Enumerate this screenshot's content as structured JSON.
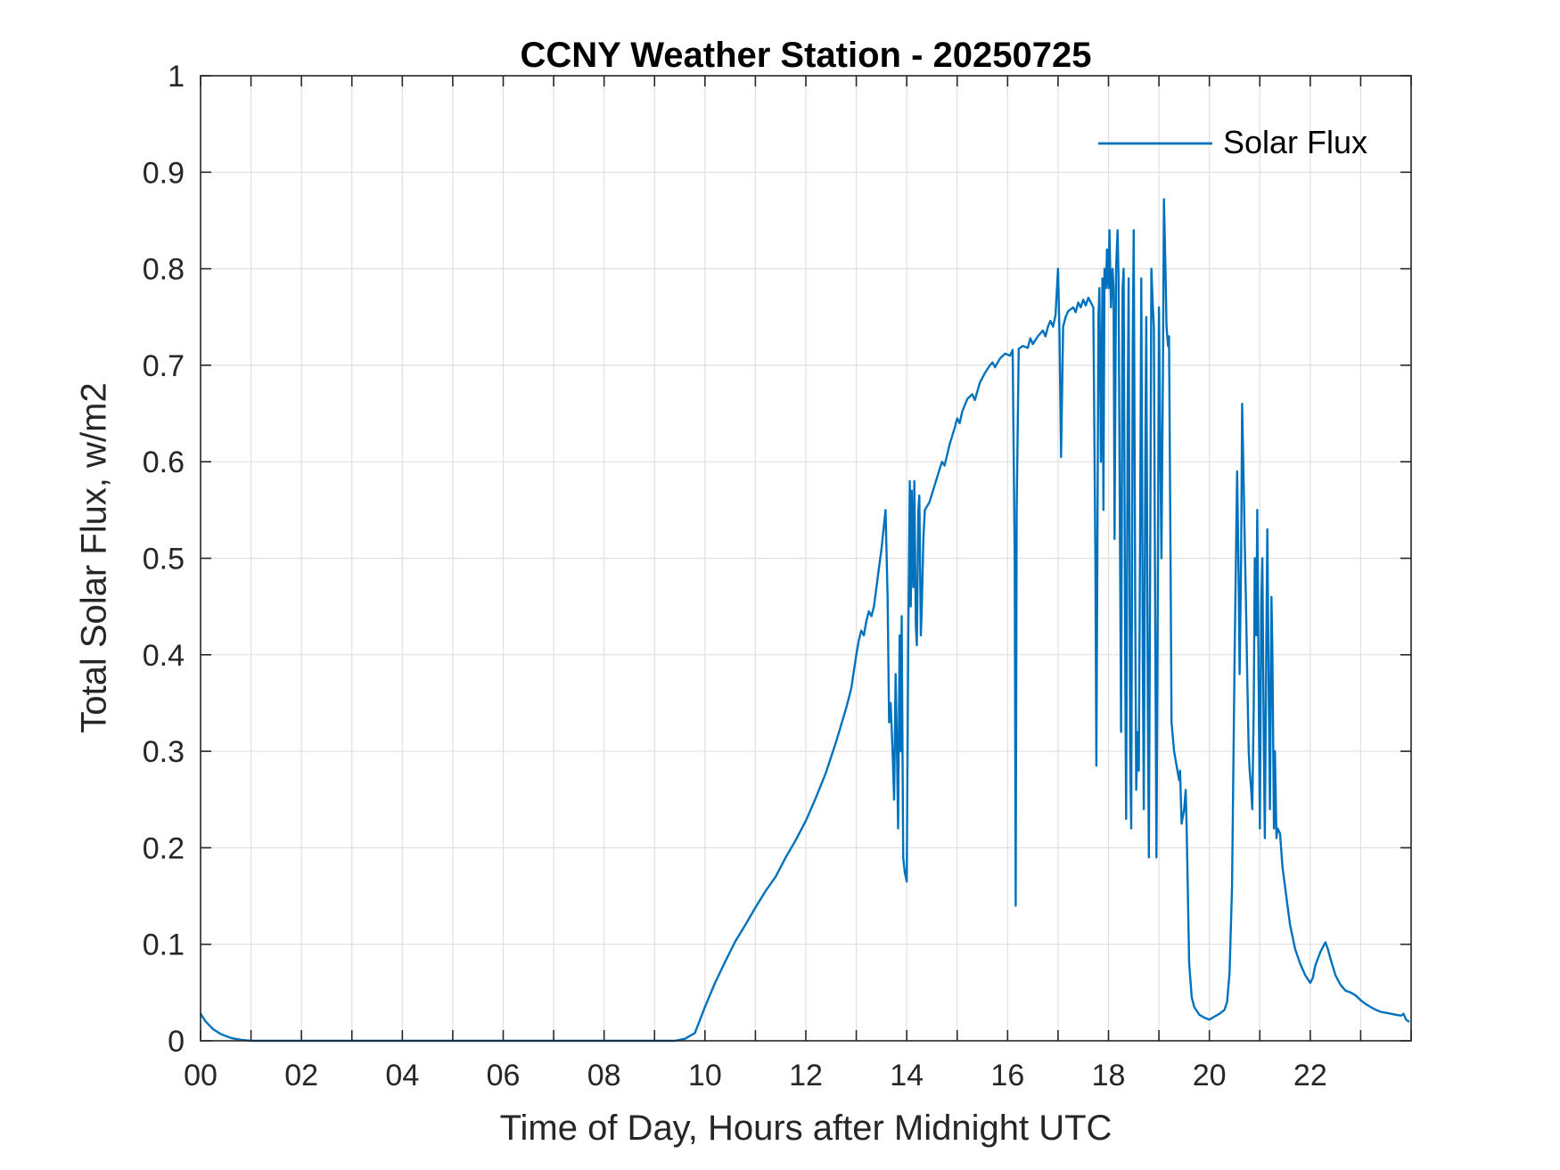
{
  "colors": {
    "background": "#ffffff",
    "line": "#0072BD",
    "grid": "#e0e0e0",
    "axis": "#262626",
    "tick_text": "#262626",
    "title_text": "#000000"
  },
  "chart_data": {
    "type": "line",
    "title": "CCNY Weather Station - 20250725",
    "xlabel": "Time of Day, Hours after Midnight UTC",
    "ylabel": "Total Solar Flux, w/m2",
    "xlim": [
      0,
      24
    ],
    "ylim": [
      0,
      1
    ],
    "grid": true,
    "x_tick_step": 1,
    "x_tick_labels": [
      {
        "value": 0,
        "label": "00"
      },
      {
        "value": 2,
        "label": "02"
      },
      {
        "value": 4,
        "label": "04"
      },
      {
        "value": 6,
        "label": "06"
      },
      {
        "value": 8,
        "label": "08"
      },
      {
        "value": 10,
        "label": "10"
      },
      {
        "value": 12,
        "label": "12"
      },
      {
        "value": 14,
        "label": "14"
      },
      {
        "value": 16,
        "label": "16"
      },
      {
        "value": 18,
        "label": "18"
      },
      {
        "value": 20,
        "label": "20"
      },
      {
        "value": 22,
        "label": "22"
      }
    ],
    "y_ticks": [
      {
        "value": 0,
        "label": "0"
      },
      {
        "value": 0.1,
        "label": "0.1"
      },
      {
        "value": 0.2,
        "label": "0.2"
      },
      {
        "value": 0.3,
        "label": "0.3"
      },
      {
        "value": 0.4,
        "label": "0.4"
      },
      {
        "value": 0.5,
        "label": "0.5"
      },
      {
        "value": 0.6,
        "label": "0.6"
      },
      {
        "value": 0.7,
        "label": "0.7"
      },
      {
        "value": 0.8,
        "label": "0.8"
      },
      {
        "value": 0.9,
        "label": "0.9"
      },
      {
        "value": 1,
        "label": "1"
      }
    ],
    "legend": {
      "position": "northeast",
      "entries": [
        {
          "label": "Solar Flux",
          "color": "#0072BD"
        }
      ]
    },
    "series": [
      {
        "name": "Solar Flux",
        "color": "#0072BD",
        "points": [
          [
            0,
            0.028
          ],
          [
            0.1,
            0.02
          ],
          [
            0.25,
            0.012
          ],
          [
            0.4,
            0.007
          ],
          [
            0.6,
            0.003
          ],
          [
            0.8,
            0.001
          ],
          [
            1,
            0
          ],
          [
            1.5,
            0
          ],
          [
            2,
            0
          ],
          [
            2.5,
            0
          ],
          [
            3,
            0
          ],
          [
            3.5,
            0
          ],
          [
            4,
            0
          ],
          [
            4.5,
            0
          ],
          [
            5,
            0
          ],
          [
            5.5,
            0
          ],
          [
            6,
            0
          ],
          [
            6.5,
            0
          ],
          [
            7,
            0
          ],
          [
            7.5,
            0
          ],
          [
            8,
            0
          ],
          [
            8.5,
            0
          ],
          [
            9,
            0
          ],
          [
            9.4,
            0
          ],
          [
            9.6,
            0.002
          ],
          [
            9.8,
            0.008
          ],
          [
            10,
            0.035
          ],
          [
            10.2,
            0.06
          ],
          [
            10.4,
            0.082
          ],
          [
            10.6,
            0.103
          ],
          [
            10.8,
            0.12
          ],
          [
            11,
            0.138
          ],
          [
            11.2,
            0.155
          ],
          [
            11.4,
            0.17
          ],
          [
            11.6,
            0.19
          ],
          [
            11.8,
            0.208
          ],
          [
            12,
            0.228
          ],
          [
            12.2,
            0.252
          ],
          [
            12.4,
            0.278
          ],
          [
            12.6,
            0.31
          ],
          [
            12.8,
            0.345
          ],
          [
            12.9,
            0.365
          ],
          [
            13,
            0.4
          ],
          [
            13.05,
            0.415
          ],
          [
            13.1,
            0.425
          ],
          [
            13.15,
            0.42
          ],
          [
            13.2,
            0.435
          ],
          [
            13.25,
            0.445
          ],
          [
            13.3,
            0.44
          ],
          [
            13.35,
            0.45
          ],
          [
            13.4,
            0.47
          ],
          [
            13.45,
            0.49
          ],
          [
            13.5,
            0.51
          ],
          [
            13.55,
            0.535
          ],
          [
            13.58,
            0.55
          ],
          [
            13.62,
            0.46
          ],
          [
            13.65,
            0.33
          ],
          [
            13.68,
            0.35
          ],
          [
            13.72,
            0.3
          ],
          [
            13.75,
            0.25
          ],
          [
            13.78,
            0.38
          ],
          [
            13.8,
            0.32
          ],
          [
            13.83,
            0.22
          ],
          [
            13.86,
            0.42
          ],
          [
            13.88,
            0.3
          ],
          [
            13.9,
            0.44
          ],
          [
            13.93,
            0.19
          ],
          [
            13.96,
            0.175
          ],
          [
            14,
            0.165
          ],
          [
            14.03,
            0.42
          ],
          [
            14.06,
            0.58
          ],
          [
            14.08,
            0.45
          ],
          [
            14.1,
            0.57
          ],
          [
            14.13,
            0.47
          ],
          [
            14.15,
            0.58
          ],
          [
            14.18,
            0.43
          ],
          [
            14.2,
            0.41
          ],
          [
            14.23,
            0.55
          ],
          [
            14.25,
            0.565
          ],
          [
            14.28,
            0.42
          ],
          [
            14.3,
            0.45
          ],
          [
            14.33,
            0.52
          ],
          [
            14.36,
            0.55
          ],
          [
            14.45,
            0.558
          ],
          [
            14.55,
            0.575
          ],
          [
            14.65,
            0.592
          ],
          [
            14.7,
            0.6
          ],
          [
            14.75,
            0.596
          ],
          [
            14.85,
            0.618
          ],
          [
            14.95,
            0.635
          ],
          [
            15,
            0.645
          ],
          [
            15.05,
            0.64
          ],
          [
            15.1,
            0.652
          ],
          [
            15.2,
            0.665
          ],
          [
            15.3,
            0.67
          ],
          [
            15.35,
            0.664
          ],
          [
            15.45,
            0.682
          ],
          [
            15.55,
            0.692
          ],
          [
            15.65,
            0.7
          ],
          [
            15.7,
            0.703
          ],
          [
            15.75,
            0.698
          ],
          [
            15.85,
            0.707
          ],
          [
            15.95,
            0.712
          ],
          [
            16.05,
            0.71
          ],
          [
            16.1,
            0.716
          ],
          [
            16.14,
            0.5
          ],
          [
            16.16,
            0.14
          ],
          [
            16.18,
            0.55
          ],
          [
            16.22,
            0.717
          ],
          [
            16.3,
            0.72
          ],
          [
            16.4,
            0.718
          ],
          [
            16.45,
            0.728
          ],
          [
            16.5,
            0.722
          ],
          [
            16.6,
            0.73
          ],
          [
            16.7,
            0.736
          ],
          [
            16.75,
            0.73
          ],
          [
            16.8,
            0.74
          ],
          [
            16.85,
            0.746
          ],
          [
            16.9,
            0.74
          ],
          [
            16.95,
            0.752
          ],
          [
            17,
            0.8
          ],
          [
            17.03,
            0.73
          ],
          [
            17.06,
            0.605
          ],
          [
            17.1,
            0.74
          ],
          [
            17.15,
            0.75
          ],
          [
            17.2,
            0.756
          ],
          [
            17.3,
            0.76
          ],
          [
            17.35,
            0.755
          ],
          [
            17.4,
            0.765
          ],
          [
            17.45,
            0.76
          ],
          [
            17.5,
            0.768
          ],
          [
            17.55,
            0.762
          ],
          [
            17.6,
            0.77
          ],
          [
            17.65,
            0.765
          ],
          [
            17.7,
            0.76
          ],
          [
            17.74,
            0.5
          ],
          [
            17.76,
            0.285
          ],
          [
            17.78,
            0.52
          ],
          [
            17.8,
            0.75
          ],
          [
            17.82,
            0.78
          ],
          [
            17.85,
            0.6
          ],
          [
            17.88,
            0.79
          ],
          [
            17.9,
            0.55
          ],
          [
            17.92,
            0.8
          ],
          [
            17.95,
            0.78
          ],
          [
            17.97,
            0.82
          ],
          [
            18,
            0.78
          ],
          [
            18.02,
            0.84
          ],
          [
            18.05,
            0.76
          ],
          [
            18.08,
            0.8
          ],
          [
            18.1,
            0.78
          ],
          [
            18.12,
            0.52
          ],
          [
            18.15,
            0.8
          ],
          [
            18.18,
            0.84
          ],
          [
            18.2,
            0.79
          ],
          [
            18.22,
            0.6
          ],
          [
            18.25,
            0.32
          ],
          [
            18.28,
            0.78
          ],
          [
            18.3,
            0.8
          ],
          [
            18.33,
            0.4
          ],
          [
            18.35,
            0.23
          ],
          [
            18.38,
            0.65
          ],
          [
            18.4,
            0.79
          ],
          [
            18.43,
            0.3
          ],
          [
            18.45,
            0.22
          ],
          [
            18.48,
            0.72
          ],
          [
            18.5,
            0.84
          ],
          [
            18.53,
            0.45
          ],
          [
            18.55,
            0.26
          ],
          [
            18.58,
            0.32
          ],
          [
            18.6,
            0.28
          ],
          [
            18.63,
            0.55
          ],
          [
            18.65,
            0.79
          ],
          [
            18.68,
            0.4
          ],
          [
            18.7,
            0.24
          ],
          [
            18.73,
            0.6
          ],
          [
            18.75,
            0.75
          ],
          [
            18.78,
            0.35
          ],
          [
            18.8,
            0.19
          ],
          [
            18.83,
            0.55
          ],
          [
            18.85,
            0.8
          ],
          [
            18.88,
            0.76
          ],
          [
            18.9,
            0.74
          ],
          [
            18.93,
            0.4
          ],
          [
            18.95,
            0.19
          ],
          [
            18.98,
            0.5
          ],
          [
            19,
            0.76
          ],
          [
            19.03,
            0.6
          ],
          [
            19.05,
            0.5
          ],
          [
            19.08,
            0.7
          ],
          [
            19.1,
            0.872
          ],
          [
            19.13,
            0.8
          ],
          [
            19.15,
            0.74
          ],
          [
            19.18,
            0.72
          ],
          [
            19.2,
            0.73
          ],
          [
            19.23,
            0.5
          ],
          [
            19.25,
            0.33
          ],
          [
            19.3,
            0.3
          ],
          [
            19.35,
            0.285
          ],
          [
            19.4,
            0.27
          ],
          [
            19.42,
            0.28
          ],
          [
            19.45,
            0.225
          ],
          [
            19.5,
            0.24
          ],
          [
            19.53,
            0.26
          ],
          [
            19.55,
            0.22
          ],
          [
            19.6,
            0.08
          ],
          [
            19.65,
            0.045
          ],
          [
            19.7,
            0.035
          ],
          [
            19.8,
            0.027
          ],
          [
            19.9,
            0.024
          ],
          [
            20,
            0.022
          ],
          [
            20.1,
            0.025
          ],
          [
            20.2,
            0.028
          ],
          [
            20.3,
            0.032
          ],
          [
            20.35,
            0.04
          ],
          [
            20.4,
            0.07
          ],
          [
            20.45,
            0.16
          ],
          [
            20.5,
            0.4
          ],
          [
            20.55,
            0.59
          ],
          [
            20.58,
            0.48
          ],
          [
            20.6,
            0.38
          ],
          [
            20.63,
            0.5
          ],
          [
            20.65,
            0.66
          ],
          [
            20.68,
            0.58
          ],
          [
            20.7,
            0.52
          ],
          [
            20.73,
            0.44
          ],
          [
            20.75,
            0.38
          ],
          [
            20.78,
            0.3
          ],
          [
            20.8,
            0.28
          ],
          [
            20.83,
            0.26
          ],
          [
            20.85,
            0.24
          ],
          [
            20.88,
            0.35
          ],
          [
            20.9,
            0.5
          ],
          [
            20.93,
            0.42
          ],
          [
            20.95,
            0.55
          ],
          [
            20.98,
            0.35
          ],
          [
            21,
            0.22
          ],
          [
            21.03,
            0.45
          ],
          [
            21.05,
            0.5
          ],
          [
            21.08,
            0.3
          ],
          [
            21.1,
            0.21
          ],
          [
            21.13,
            0.42
          ],
          [
            21.15,
            0.53
          ],
          [
            21.18,
            0.35
          ],
          [
            21.2,
            0.24
          ],
          [
            21.23,
            0.46
          ],
          [
            21.25,
            0.4
          ],
          [
            21.28,
            0.22
          ],
          [
            21.3,
            0.3
          ],
          [
            21.33,
            0.21
          ],
          [
            21.35,
            0.22
          ],
          [
            21.4,
            0.215
          ],
          [
            21.45,
            0.18
          ],
          [
            21.5,
            0.16
          ],
          [
            21.6,
            0.12
          ],
          [
            21.7,
            0.095
          ],
          [
            21.8,
            0.08
          ],
          [
            21.9,
            0.068
          ],
          [
            22,
            0.06
          ],
          [
            22.05,
            0.065
          ],
          [
            22.1,
            0.078
          ],
          [
            22.2,
            0.092
          ],
          [
            22.3,
            0.102
          ],
          [
            22.35,
            0.095
          ],
          [
            22.4,
            0.085
          ],
          [
            22.5,
            0.068
          ],
          [
            22.6,
            0.058
          ],
          [
            22.7,
            0.052
          ],
          [
            22.8,
            0.05
          ],
          [
            22.9,
            0.047
          ],
          [
            23,
            0.042
          ],
          [
            23.1,
            0.038
          ],
          [
            23.2,
            0.035
          ],
          [
            23.3,
            0.032
          ],
          [
            23.4,
            0.03
          ],
          [
            23.5,
            0.029
          ],
          [
            23.6,
            0.028
          ],
          [
            23.7,
            0.027
          ],
          [
            23.8,
            0.026
          ],
          [
            23.85,
            0.028
          ],
          [
            23.9,
            0.022
          ],
          [
            23.95,
            0.02
          ]
        ]
      }
    ]
  }
}
